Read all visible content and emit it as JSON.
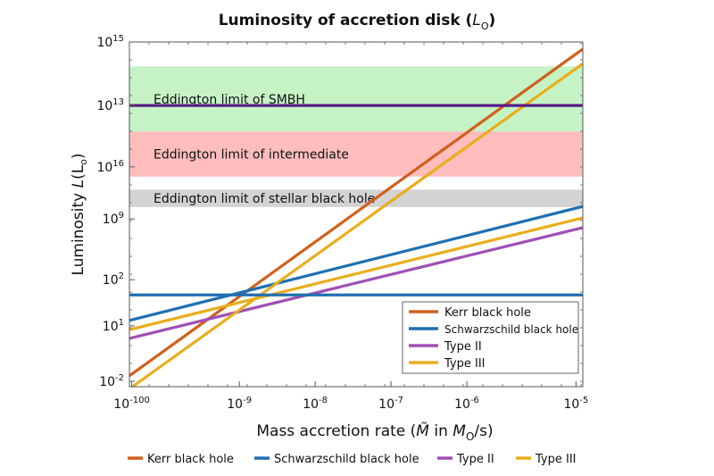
{
  "chart_data": {
    "type": "line",
    "title": {
      "main": "Luminosity of accretion disk (",
      "var": "L",
      "sub": "O",
      "close": ")"
    },
    "xlabel": {
      "main": "Mass accretion rate (",
      "var": "M̃",
      "mid": " in ",
      "var2": "M",
      "sub": "O",
      "close": "/s)"
    },
    "ylabel": {
      "main": "Luminosity ",
      "var": "L",
      "paren": "(L",
      "sub": "o",
      "close": ")"
    },
    "xscale": "log",
    "xlim": [
      -10.45,
      -4.47
    ],
    "ylim": [
      -0.1,
      6.25
    ],
    "grid": false,
    "x_ticks": [
      {
        "value": -10.42,
        "base": "10",
        "exp": "-100"
      },
      {
        "value": -9,
        "base": "10",
        "exp": "-9"
      },
      {
        "value": -8,
        "base": "10",
        "exp": "-8"
      },
      {
        "value": -7,
        "base": "10",
        "exp": "-7"
      },
      {
        "value": -6,
        "base": "10",
        "exp": "-6"
      },
      {
        "value": -4.56,
        "base": "10",
        "exp": "-5"
      }
    ],
    "y_ticks": [
      {
        "value": 6.25,
        "base": "10",
        "exp": "15"
      },
      {
        "value": 5.08,
        "base": "10",
        "exp": "13"
      },
      {
        "value": 3.95,
        "base": "10",
        "exp": "16"
      },
      {
        "value": 2.99,
        "base": "10",
        "exp": "9"
      },
      {
        "value": 1.87,
        "base": "10",
        "exp": "2"
      },
      {
        "value": 1.02,
        "base": "10",
        "exp": "1"
      },
      {
        "value": 0.0,
        "base": "10",
        "exp": "-2"
      }
    ],
    "bands": [
      {
        "label": "Eddington limit of SMBH",
        "y0": 4.6,
        "y1": 5.8,
        "color": "#c6f3c6"
      },
      {
        "label": "Eddington limit of intermediate",
        "y0": 3.77,
        "y1": 4.6,
        "color": "#ffbdbd"
      },
      {
        "label": "Eddington limit of stellar black hole",
        "y0": 3.21,
        "y1": 3.53,
        "color": "#d3d3d3"
      }
    ],
    "series": [
      {
        "name": "Kerr black hole",
        "color": "#d2601c",
        "x": [
          -10.45,
          -4.47
        ],
        "y": [
          0.1,
          6.12
        ]
      },
      {
        "name": "Schwarzschild black hole",
        "color": "#1f6fb3",
        "x": [
          -10.45,
          -4.47
        ],
        "y": [
          1.12,
          3.22
        ]
      },
      {
        "name": "Type II",
        "color": "#a04fb6",
        "x": [
          -10.45,
          -4.47
        ],
        "y": [
          0.79,
          2.83
        ]
      },
      {
        "name": "Type III",
        "color": "#e9ae1c",
        "x": [
          -10.41,
          -4.47
        ],
        "y": [
          -0.1,
          5.85
        ]
      },
      {
        "color": "#e9ae1c",
        "x": [
          -10.45,
          -4.47
        ],
        "y": [
          0.95,
          3.01
        ]
      },
      {
        "color": "#1f6fb3",
        "x": [
          -10.45,
          -4.47
        ],
        "y": [
          1.59,
          1.59
        ]
      },
      {
        "color": "#5b1a87",
        "x": [
          -10.45,
          -4.47
        ],
        "y": [
          5.08,
          5.08
        ]
      }
    ],
    "legend_inside": {
      "placement": "bottom-right",
      "entries": [
        0,
        1,
        2,
        3
      ]
    },
    "legend_bottom": {
      "placement": "bottom",
      "entries": [
        0,
        1,
        2,
        3
      ]
    }
  }
}
